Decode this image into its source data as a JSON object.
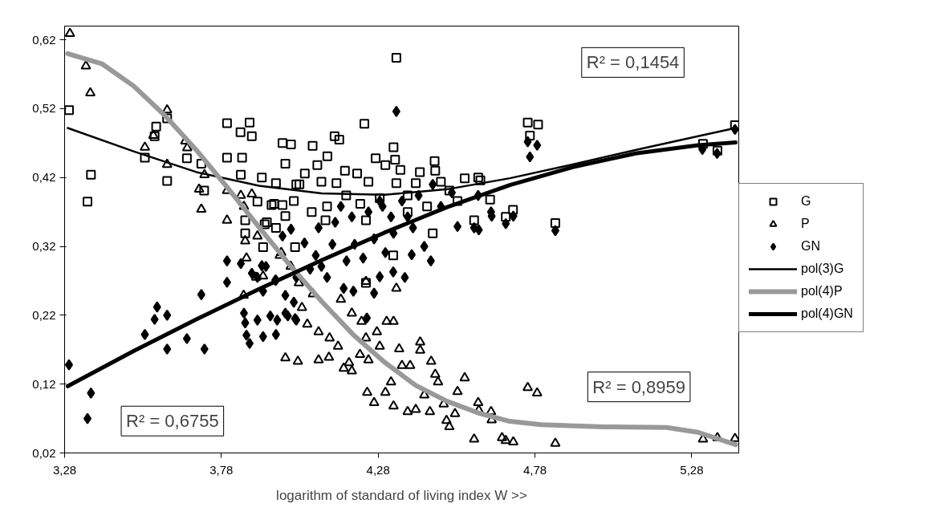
{
  "chart_data": {
    "type": "scatter",
    "xlabel": "logarithm of standard of living index W >>",
    "xlim": [
      3.28,
      5.43
    ],
    "ylim": [
      0.02,
      0.64
    ],
    "xticks": [
      {
        "value": 3.28,
        "label": "3,28"
      },
      {
        "value": 3.78,
        "label": "3,78"
      },
      {
        "value": 4.28,
        "label": "4,28"
      },
      {
        "value": 4.78,
        "label": "4,78"
      },
      {
        "value": 5.28,
        "label": "5,28"
      }
    ],
    "yticks": [
      {
        "value": 0.02,
        "label": "0,02"
      },
      {
        "value": 0.12,
        "label": "0,12"
      },
      {
        "value": 0.22,
        "label": "0,22"
      },
      {
        "value": 0.32,
        "label": "0,32"
      },
      {
        "value": 0.42,
        "label": "0,42"
      },
      {
        "value": 0.52,
        "label": "0,52"
      },
      {
        "value": 0.62,
        "label": "0,62"
      }
    ],
    "grid": false,
    "legend": "right",
    "annotations": [
      "R² = 0,1454",
      "R² = 0,8959",
      "R² = 0,6755"
    ],
    "series": [
      {
        "name": "G",
        "marker": "square",
        "color": "#000000",
        "x": [
          3.294,
          3.364,
          3.353,
          3.536,
          3.572,
          3.567,
          3.607,
          3.607,
          3.67,
          3.716,
          3.725,
          3.798,
          3.798,
          3.841,
          3.87,
          3.877,
          3.846,
          3.842,
          3.975,
          4.002,
          3.984,
          3.909,
          3.954,
          3.895,
          3.94,
          3.975,
          3.984,
          3.918,
          3.954,
          3.856,
          3.856,
          3.913,
          4.015,
          4.029,
          4.011,
          4.338,
          4.236,
          4.141,
          4.156,
          4.071,
          4.118,
          4.329,
          4.272,
          4.334,
          4.46,
          4.086,
          4.174,
          4.303,
          4.351,
          4.413,
          4.462,
          4.046,
          4.213,
          4.556,
          4.599,
          4.019,
          4.099,
          4.147,
          4.249,
          4.338,
          4.4,
          4.48,
          4.507,
          4.533,
          3.948,
          4.068,
          4.117,
          4.178,
          4.223,
          4.285,
          4.374,
          4.436,
          4.112,
          4.241,
          4.374,
          4.586,
          4.454,
          4.328,
          3.925,
          4.241,
          4.606,
          4.757,
          4.79,
          4.764,
          4.71,
          4.687,
          4.845,
          4.637,
          5.316,
          5.362,
          5.418
        ],
        "values": [
          0.518,
          0.424,
          0.385,
          0.449,
          0.494,
          0.48,
          0.506,
          0.415,
          0.448,
          0.44,
          0.401,
          0.499,
          0.449,
          0.486,
          0.5,
          0.48,
          0.449,
          0.424,
          0.47,
          0.468,
          0.44,
          0.42,
          0.412,
          0.385,
          0.38,
          0.38,
          0.364,
          0.352,
          0.347,
          0.358,
          0.339,
          0.319,
          0.319,
          0.41,
          0.386,
          0.594,
          0.498,
          0.48,
          0.475,
          0.466,
          0.451,
          0.464,
          0.448,
          0.446,
          0.444,
          0.438,
          0.43,
          0.438,
          0.431,
          0.428,
          0.43,
          0.426,
          0.426,
          0.419,
          0.42,
          0.41,
          0.414,
          0.412,
          0.414,
          0.412,
          0.412,
          0.414,
          0.401,
          0.386,
          0.382,
          0.37,
          0.378,
          0.394,
          0.382,
          0.39,
          0.394,
          0.378,
          0.358,
          0.358,
          0.37,
          0.358,
          0.339,
          0.307,
          0.355,
          0.267,
          0.416,
          0.5,
          0.497,
          0.481,
          0.373,
          0.363,
          0.354,
          0.388,
          0.469,
          0.459,
          0.496
        ]
      },
      {
        "name": "P",
        "marker": "triangle",
        "color": "#000000",
        "x": [
          3.297,
          3.348,
          3.362,
          3.607,
          3.536,
          3.563,
          3.665,
          3.671,
          3.607,
          3.726,
          3.709,
          3.716,
          3.798,
          3.798,
          3.842,
          3.852,
          3.877,
          3.856,
          3.895,
          3.86,
          3.891,
          3.913,
          3.971,
          3.851,
          3.984,
          4.024,
          4.09,
          4.123,
          4.338,
          4.241,
          4.307,
          4.329,
          4.414,
          4.414,
          4.449,
          4.462,
          4.471,
          4.556,
          4.533,
          4.599,
          4.64,
          4.586,
          4.675,
          4.037,
          4.054,
          4.09,
          4.125,
          4.152,
          4.17,
          4.196,
          4.161,
          4.196,
          4.227,
          4.241,
          4.276,
          4.285,
          4.249,
          4.245,
          4.267,
          4.303,
          4.329,
          4.347,
          4.356,
          4.382,
          4.374,
          4.4,
          4.427,
          4.445,
          4.489,
          4.498,
          4.507,
          4.525,
          4.321,
          4.222,
          4.187,
          3.966,
          4.001,
          4.027,
          4.072,
          4.601,
          4.642,
          4.687,
          4.711,
          4.757,
          4.787,
          4.845,
          5.316,
          5.362,
          5.418
        ],
        "values": [
          0.629,
          0.582,
          0.543,
          0.518,
          0.464,
          0.481,
          0.473,
          0.463,
          0.439,
          0.424,
          0.403,
          0.374,
          0.401,
          0.358,
          0.394,
          0.378,
          0.396,
          0.328,
          0.335,
          0.303,
          0.275,
          0.277,
          0.311,
          0.249,
          0.158,
          0.153,
          0.155,
          0.159,
          0.259,
          0.269,
          0.211,
          0.211,
          0.181,
          0.169,
          0.153,
          0.134,
          0.123,
          0.129,
          0.109,
          0.093,
          0.08,
          0.04,
          0.042,
          0.231,
          0.207,
          0.196,
          0.187,
          0.175,
          0.143,
          0.139,
          0.243,
          0.223,
          0.211,
          0.187,
          0.196,
          0.175,
          0.155,
          0.108,
          0.093,
          0.108,
          0.088,
          0.171,
          0.147,
          0.147,
          0.08,
          0.083,
          0.104,
          0.08,
          0.091,
          0.067,
          0.058,
          0.077,
          0.123,
          0.163,
          0.151,
          0.307,
          0.291,
          0.267,
          0.251,
          0.082,
          0.068,
          0.038,
          0.036,
          0.115,
          0.107,
          0.034,
          0.04,
          0.042,
          0.041
        ]
      },
      {
        "name": "GN",
        "marker": "diamond",
        "color": "#000000",
        "x": [
          3.294,
          3.364,
          3.353,
          3.536,
          3.567,
          3.575,
          3.607,
          3.607,
          3.67,
          3.716,
          3.726,
          3.798,
          3.798,
          3.842,
          3.909,
          3.877,
          3.895,
          3.954,
          3.975,
          4.002,
          3.913,
          3.852,
          3.856,
          3.86,
          3.87,
          3.895,
          3.936,
          3.958,
          3.913,
          3.954,
          3.984,
          3.984,
          4.011,
          4.015,
          4.338,
          4.045,
          4.081,
          4.063,
          4.117,
          4.17,
          4.201,
          4.267,
          4.285,
          4.328,
          4.365,
          4.387,
          4.448,
          4.427,
          4.533,
          4.586,
          4.64,
          4.599,
          4.244,
          3.922,
          3.952,
          3.992,
          4.019,
          4.09,
          4.143,
          4.196,
          4.249,
          4.294,
          4.356,
          4.409,
          4.454,
          4.134,
          4.205,
          4.267,
          4.329,
          4.391,
          4.179,
          4.232,
          4.303,
          4.099,
          4.019,
          4.321,
          4.374,
          4.48,
          4.515,
          4.285,
          4.161,
          4.601,
          4.642,
          4.687,
          4.711,
          4.757,
          4.787,
          4.764,
          4.845,
          5.314,
          5.361,
          5.418
        ],
        "values": [
          0.148,
          0.107,
          0.07,
          0.192,
          0.214,
          0.232,
          0.22,
          0.171,
          0.186,
          0.25,
          0.171,
          0.299,
          0.268,
          0.295,
          0.292,
          0.281,
          0.275,
          0.271,
          0.335,
          0.345,
          0.255,
          0.223,
          0.209,
          0.191,
          0.179,
          0.213,
          0.219,
          0.213,
          0.189,
          0.192,
          0.223,
          0.249,
          0.239,
          0.215,
          0.516,
          0.325,
          0.307,
          0.287,
          0.275,
          0.259,
          0.255,
          0.252,
          0.276,
          0.283,
          0.275,
          0.308,
          0.299,
          0.32,
          0.349,
          0.347,
          0.37,
          0.394,
          0.216,
          0.291,
          0.271,
          0.219,
          0.213,
          0.347,
          0.355,
          0.363,
          0.37,
          0.378,
          0.386,
          0.394,
          0.41,
          0.323,
          0.323,
          0.331,
          0.339,
          0.347,
          0.299,
          0.303,
          0.311,
          0.291,
          0.275,
          0.363,
          0.363,
          0.378,
          0.398,
          0.386,
          0.378,
          0.344,
          0.364,
          0.353,
          0.364,
          0.472,
          0.467,
          0.45,
          0.343,
          0.461,
          0.455,
          0.49
        ]
      },
      {
        "name": "pol(3)G",
        "type": "line",
        "marker": "none",
        "color": "#000000",
        "x": [
          3.29,
          3.5,
          3.7,
          3.9,
          4.1,
          4.3,
          4.5,
          4.7,
          4.9,
          5.1,
          5.3,
          5.42
        ],
        "values": [
          0.492,
          0.458,
          0.428,
          0.408,
          0.397,
          0.395,
          0.403,
          0.419,
          0.439,
          0.46,
          0.48,
          0.492
        ]
      },
      {
        "name": "pol(4)P",
        "type": "line",
        "marker": "none",
        "color": "#999999",
        "x": [
          3.29,
          3.4,
          3.5,
          3.6,
          3.7,
          3.8,
          3.9,
          4.0,
          4.1,
          4.2,
          4.3,
          4.4,
          4.5,
          4.6,
          4.7,
          4.8,
          5.0,
          5.2,
          5.3,
          5.42
        ],
        "values": [
          0.6,
          0.585,
          0.553,
          0.51,
          0.46,
          0.405,
          0.348,
          0.292,
          0.24,
          0.192,
          0.152,
          0.118,
          0.095,
          0.078,
          0.066,
          0.061,
          0.058,
          0.057,
          0.05,
          0.032
        ]
      },
      {
        "name": "pol(4)GN",
        "type": "line",
        "marker": "none",
        "color": "#000000",
        "x": [
          3.29,
          3.5,
          3.7,
          3.9,
          4.1,
          4.3,
          4.5,
          4.7,
          4.9,
          5.1,
          5.3,
          5.42
        ],
        "values": [
          0.117,
          0.168,
          0.214,
          0.258,
          0.3,
          0.34,
          0.377,
          0.409,
          0.435,
          0.455,
          0.467,
          0.471
        ]
      }
    ]
  }
}
